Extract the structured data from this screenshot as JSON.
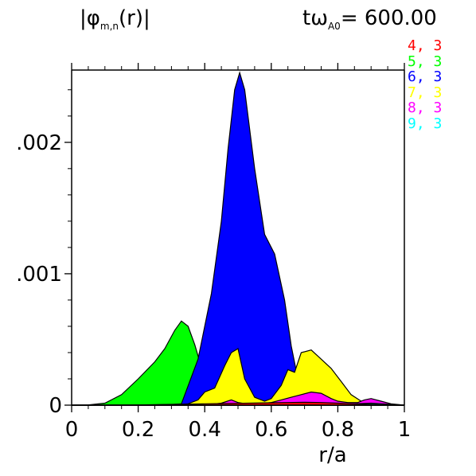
{
  "header": {
    "title_prefix": "|φ",
    "title_sub": "m,n",
    "title_suffix": "(r)|",
    "time_prefix": "tω",
    "time_sub": "A0",
    "time_suffix": "=  600.00"
  },
  "chart_data": {
    "type": "area",
    "xlabel": "r/a",
    "ylabel": "",
    "xlim": [
      0,
      1
    ],
    "ylim": [
      0,
      0.00255
    ],
    "x_ticks": [
      "0",
      "0.2",
      "0.4",
      "0.6",
      "0.8",
      "1"
    ],
    "x_tick_values": [
      0,
      0.2,
      0.4,
      0.6,
      0.8,
      1
    ],
    "y_ticks": [
      "0",
      "0.001",
      "0.002"
    ],
    "y_tick_values": [
      0,
      0.001,
      0.002
    ],
    "y_ticks_visible": [
      "0",
      ".001",
      ".002"
    ],
    "legend_position": "right",
    "series": [
      {
        "name": "4, 3",
        "color": "#ff0000",
        "x": [
          0.0,
          0.05,
          0.1,
          0.15,
          0.2,
          0.25,
          0.3,
          0.35,
          0.4,
          0.45,
          0.5,
          0.55,
          0.6,
          0.65,
          0.7,
          0.75,
          0.8,
          0.85,
          0.9,
          0.95,
          1.0
        ],
        "y": [
          0,
          0,
          0,
          0,
          2e-06,
          4e-06,
          6e-06,
          8e-06,
          1e-05,
          1.2e-05,
          1.4e-05,
          1.6e-05,
          1.8e-05,
          2e-05,
          2.2e-05,
          2e-05,
          1.5e-05,
          1e-05,
          6e-06,
          2e-06,
          0
        ]
      },
      {
        "name": "5, 3",
        "color": "#00ff00",
        "x": [
          0.0,
          0.05,
          0.1,
          0.15,
          0.2,
          0.25,
          0.28,
          0.31,
          0.33,
          0.35,
          0.37,
          0.4,
          0.45,
          0.5,
          0.55,
          0.6,
          0.65,
          0.7,
          0.75,
          0.8,
          0.85,
          0.9,
          0.95,
          1.0
        ],
        "y": [
          0,
          2e-06,
          1.5e-05,
          8e-05,
          0.0002,
          0.00033,
          0.00043,
          0.00057,
          0.00064,
          0.0006,
          0.00046,
          0.0002,
          7e-05,
          4e-05,
          3e-05,
          2e-05,
          1e-05,
          5e-06,
          2e-06,
          0,
          0,
          0,
          0,
          0
        ]
      },
      {
        "name": "6, 3",
        "color": "#0000ff",
        "x": [
          0.0,
          0.1,
          0.2,
          0.3,
          0.33,
          0.38,
          0.42,
          0.45,
          0.47,
          0.49,
          0.505,
          0.52,
          0.55,
          0.58,
          0.61,
          0.64,
          0.66,
          0.68,
          0.7,
          0.72,
          0.75,
          0.8,
          0.9,
          1.0
        ],
        "y": [
          0,
          0,
          0,
          5e-06,
          1e-05,
          0.00035,
          0.00085,
          0.0014,
          0.00195,
          0.0024,
          0.00253,
          0.0024,
          0.0018,
          0.0013,
          0.00115,
          0.0008,
          0.00045,
          0.0002,
          8e-05,
          3e-05,
          1e-05,
          0,
          0,
          0
        ]
      },
      {
        "name": "7, 3",
        "color": "#ffff00",
        "x": [
          0.0,
          0.3,
          0.35,
          0.38,
          0.4,
          0.43,
          0.46,
          0.48,
          0.5,
          0.52,
          0.55,
          0.58,
          0.6,
          0.63,
          0.65,
          0.67,
          0.69,
          0.72,
          0.75,
          0.78,
          0.81,
          0.84,
          0.87,
          0.9,
          0.95,
          1.0
        ],
        "y": [
          0,
          0,
          1e-05,
          4e-05,
          0.0001,
          0.00013,
          0.0003,
          0.0004,
          0.00043,
          0.0002,
          6e-05,
          3e-05,
          5e-05,
          0.00015,
          0.00027,
          0.00025,
          0.0004,
          0.00042,
          0.00035,
          0.00028,
          0.00018,
          8e-05,
          3e-05,
          5e-06,
          0,
          0
        ]
      },
      {
        "name": "8, 3",
        "color": "#ff00ff",
        "x": [
          0.0,
          0.4,
          0.45,
          0.48,
          0.5,
          0.53,
          0.56,
          0.6,
          0.63,
          0.66,
          0.69,
          0.72,
          0.75,
          0.78,
          0.8,
          0.83,
          0.86,
          0.88,
          0.9,
          0.93,
          0.96,
          1.0
        ],
        "y": [
          0,
          0,
          1.5e-05,
          4e-05,
          2e-05,
          8e-06,
          1e-05,
          2e-05,
          4e-05,
          6e-05,
          8e-05,
          0.0001,
          9e-05,
          5e-05,
          3e-05,
          2e-05,
          2e-05,
          4e-05,
          5e-05,
          3e-05,
          1e-05,
          0
        ]
      },
      {
        "name": "9, 3",
        "color": "#00ffff",
        "x": [
          0.0,
          0.5,
          0.6,
          0.7,
          0.8,
          0.85,
          0.9,
          0.95,
          1.0
        ],
        "y": [
          0,
          0,
          2e-06,
          5e-06,
          8e-06,
          1e-05,
          1.5e-05,
          8e-06,
          0
        ]
      }
    ],
    "draw_order": [
      "5, 3",
      "6, 3",
      "7, 3",
      "8, 3",
      "9, 3",
      "4, 3"
    ],
    "grid": false
  }
}
